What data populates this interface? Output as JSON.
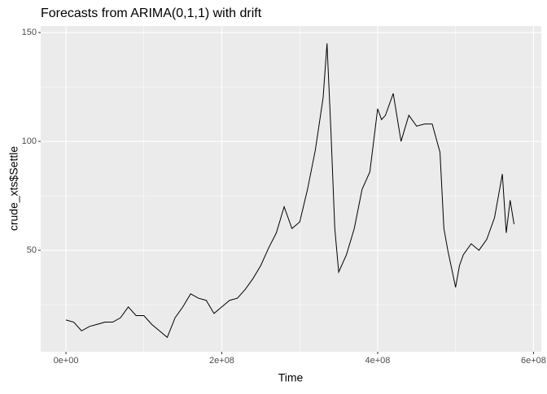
{
  "chart_data": {
    "type": "line",
    "title": "Forecasts from ARIMA(0,1,1) with drift",
    "x_label": "Time",
    "y_label": "crude_xts$Settle",
    "x": [
      0,
      10000000,
      20000000,
      30000000,
      40000000,
      50000000,
      60000000,
      70000000,
      80000000,
      90000000,
      100000000,
      110000000,
      120000000,
      130000000,
      140000000,
      150000000,
      160000000,
      170000000,
      180000000,
      190000000,
      200000000,
      210000000,
      220000000,
      230000000,
      240000000,
      250000000,
      260000000,
      270000000,
      280000000,
      290000000,
      300000000,
      310000000,
      320000000,
      330000000,
      335000000,
      340000000,
      345000000,
      350000000,
      360000000,
      370000000,
      380000000,
      390000000,
      400000000,
      405000000,
      410000000,
      420000000,
      430000000,
      440000000,
      450000000,
      460000000,
      470000000,
      480000000,
      485000000,
      490000000,
      500000000,
      505000000,
      510000000,
      520000000,
      530000000,
      540000000,
      550000000,
      555000000,
      560000000,
      565000000,
      570000000,
      575000000
    ],
    "series": [
      {
        "name": "Settle",
        "color": "#000000",
        "values": [
          18,
          17,
          13,
          15,
          16,
          17,
          17,
          19,
          24,
          20,
          20,
          16,
          13,
          10,
          19,
          24,
          30,
          28,
          27,
          21,
          24,
          27,
          28,
          32,
          37,
          43,
          51,
          58,
          70,
          60,
          63,
          78,
          96,
          120,
          145,
          105,
          60,
          40,
          48,
          60,
          78,
          86,
          115,
          110,
          112,
          122,
          100,
          112,
          107,
          108,
          108,
          95,
          60,
          50,
          33,
          43,
          48,
          53,
          50,
          55,
          65,
          75,
          85,
          58,
          73,
          62
        ]
      }
    ],
    "xlim": [
      -32400000,
      610000000
    ],
    "ylim": [
      3.4,
      153
    ],
    "xticks": [
      {
        "value": 0,
        "label": "0e+00"
      },
      {
        "value": 200000000,
        "label": "2e+08"
      },
      {
        "value": 400000000,
        "label": "4e+08"
      },
      {
        "value": 600000000,
        "label": "6e+08"
      }
    ],
    "yticks": [
      50,
      100,
      150
    ],
    "minor_xticks": [
      100000000,
      300000000,
      500000000
    ],
    "minor_yticks": [
      25,
      75,
      125
    ],
    "grid": true
  }
}
